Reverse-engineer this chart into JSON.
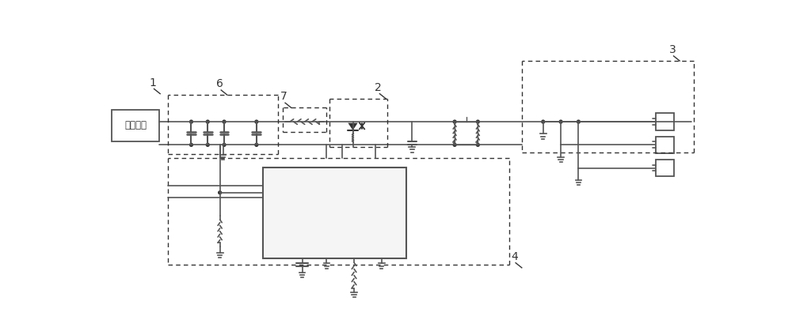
{
  "bg_color": "#ffffff",
  "line_color": "#666666",
  "fig_width": 10.0,
  "fig_height": 4.24
}
